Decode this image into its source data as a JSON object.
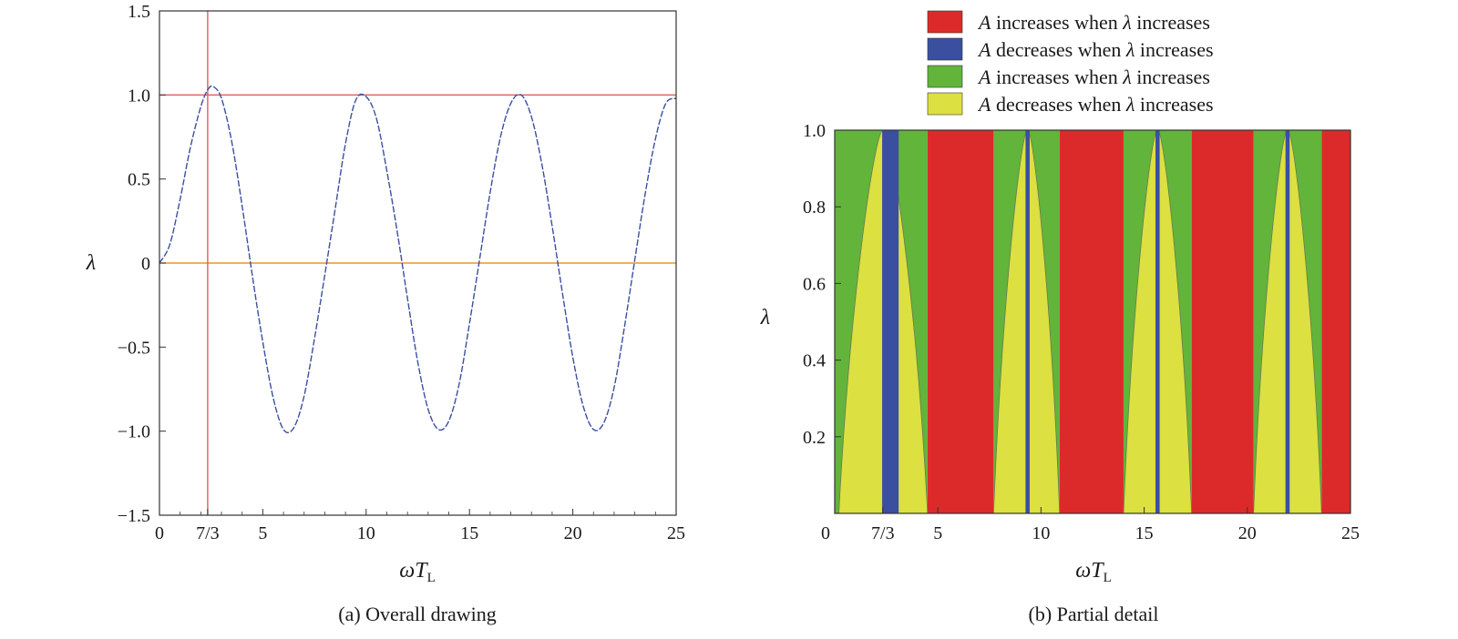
{
  "chart_data": [
    {
      "type": "line",
      "caption": "(a) Overall drawing",
      "xlabel": "ωT",
      "xlabel_sub": "L",
      "ylabel": "λ",
      "xlim": [
        0,
        25
      ],
      "ylim": [
        -1.5,
        1.5
      ],
      "xticks": [
        {
          "value": 0,
          "label": "0"
        },
        {
          "value": 2.333,
          "label": "7/3"
        },
        {
          "value": 5,
          "label": "5"
        },
        {
          "value": 10,
          "label": "10"
        },
        {
          "value": 15,
          "label": "15"
        },
        {
          "value": 20,
          "label": "20"
        },
        {
          "value": 25,
          "label": "25"
        }
      ],
      "yticks": [
        {
          "value": 1.5,
          "label": "1.5"
        },
        {
          "value": 1.0,
          "label": "1.0"
        },
        {
          "value": 0.5,
          "label": "0.5"
        },
        {
          "value": 0,
          "label": "0"
        },
        {
          "value": -0.5,
          "label": "−0.5"
        },
        {
          "value": -1.0,
          "label": "−1.0"
        },
        {
          "value": -1.5,
          "label": "−1.5"
        }
      ],
      "series": [
        {
          "color": "#3a4fa0",
          "x": [
            0,
            0.5,
            1.0,
            1.5,
            2.0,
            2.333,
            2.6,
            3.0,
            3.5,
            4.0,
            4.5,
            5.0,
            5.5,
            6.0,
            6.5,
            7.0,
            7.5,
            8.0,
            8.5,
            9.0,
            9.5,
            10.0,
            10.5,
            11.0,
            11.5,
            12.0,
            12.5,
            13.0,
            13.5,
            14.0,
            14.5,
            15.0,
            15.5,
            16.0,
            16.5,
            17.0,
            17.5,
            18.0,
            18.5,
            19.0,
            19.5,
            20.0,
            20.5,
            21.0,
            21.5,
            22.0,
            22.5,
            23.0,
            23.5,
            24.0,
            24.5,
            25.0
          ],
          "y": [
            0,
            0.11,
            0.38,
            0.69,
            0.93,
            1.03,
            1.05,
            0.98,
            0.72,
            0.34,
            -0.08,
            -0.47,
            -0.8,
            -0.99,
            -0.98,
            -0.79,
            -0.45,
            -0.07,
            0.32,
            0.71,
            0.97,
            0.99,
            0.86,
            0.55,
            0.19,
            -0.21,
            -0.59,
            -0.87,
            -0.99,
            -0.94,
            -0.72,
            -0.36,
            0.03,
            0.42,
            0.75,
            0.95,
            1.0,
            0.87,
            0.59,
            0.22,
            -0.18,
            -0.56,
            -0.85,
            -0.99,
            -0.95,
            -0.74,
            -0.38,
            0.02,
            0.41,
            0.74,
            0.95,
            0.98
          ]
        }
      ],
      "reference_lines": [
        {
          "orientation": "horizontal",
          "value": 1.0,
          "color": "#d9605a"
        },
        {
          "orientation": "horizontal",
          "value": 0,
          "color": "#e29a2e"
        },
        {
          "orientation": "vertical",
          "value": 2.333,
          "color": "#d9605a"
        }
      ],
      "grid": false
    },
    {
      "type": "area",
      "caption": "(b) Partial detail",
      "xlabel": "ωT",
      "xlabel_sub": "L",
      "ylabel": "λ",
      "xlim": [
        0,
        25
      ],
      "ylim": [
        0,
        1.0
      ],
      "xticks": [
        {
          "value": 2.333,
          "label": "7/3"
        },
        {
          "value": 5,
          "label": "5"
        },
        {
          "value": 10,
          "label": "10"
        },
        {
          "value": 15,
          "label": "15"
        },
        {
          "value": 20,
          "label": "20"
        },
        {
          "value": 25,
          "label": "25"
        }
      ],
      "origin_label": "0",
      "yticks": [
        {
          "value": 1.0,
          "label": "1.0"
        },
        {
          "value": 0.8,
          "label": "0.8"
        },
        {
          "value": 0.6,
          "label": "0.6"
        },
        {
          "value": 0.4,
          "label": "0.4"
        },
        {
          "value": 0.2,
          "label": "0.2"
        }
      ],
      "legend": [
        {
          "symbol": "A",
          "text": " increases when ",
          "lambda": "λ",
          "tail": " increases",
          "color": "#dc2a2a"
        },
        {
          "symbol": "A",
          "text": " decreases when ",
          "lambda": "λ",
          "tail": " increases",
          "color": "#3a4fa0"
        },
        {
          "symbol": "A",
          "text": " increases when ",
          "lambda": "λ",
          "tail": " increases",
          "color": "#62b43a"
        },
        {
          "symbol": "A",
          "text": " decreases when ",
          "lambda": "λ",
          "tail": " increases",
          "color": "#dce040"
        }
      ],
      "legend_position": "top",
      "regions": {
        "red_bands": [
          [
            4.5,
            7.7
          ],
          [
            10.9,
            14.0
          ],
          [
            17.3,
            20.3
          ],
          [
            23.6,
            25.0
          ]
        ],
        "green_bands": [
          [
            0,
            4.5
          ],
          [
            7.7,
            10.9
          ],
          [
            14.0,
            17.3
          ],
          [
            20.3,
            23.6
          ]
        ],
        "yellow_humps": [
          {
            "left": 0.2,
            "peak": 2.35,
            "right": 4.5
          },
          {
            "left": 7.7,
            "peak": 9.35,
            "right": 10.9
          },
          {
            "left": 14.0,
            "peak": 15.65,
            "right": 17.3
          },
          {
            "left": 20.3,
            "peak": 21.95,
            "right": 23.6
          }
        ],
        "blue_bands": [
          [
            2.3,
            3.1
          ],
          [
            9.25,
            9.45
          ],
          [
            15.55,
            15.75
          ],
          [
            21.85,
            22.05
          ]
        ]
      }
    }
  ]
}
